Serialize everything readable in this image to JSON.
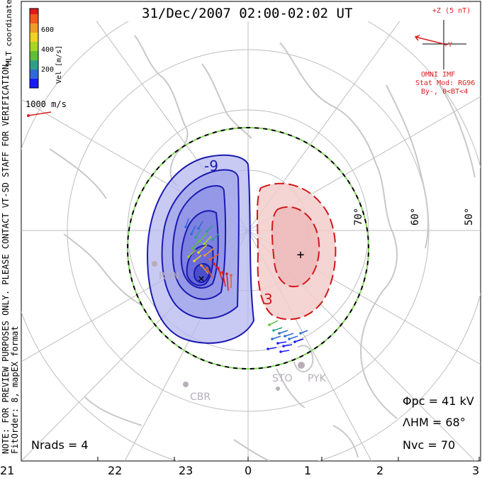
{
  "title": "31/Dec/2007 02:00-02:02 UT",
  "coordinates": "MLT coordinates",
  "colorbar": {
    "label": "Vel [m/s]",
    "ticks": [
      "600",
      "400",
      "200"
    ],
    "colors": [
      "#1a1aff",
      "#2e6bd6",
      "#2ea08a",
      "#5ec03a",
      "#a8d628",
      "#f0d12a",
      "#f09a2a",
      "#f05a1e",
      "#e01a1a"
    ]
  },
  "reference_vector": "1000 m/s",
  "notes": {
    "line1": "NOTE: FOR PREVIEW PURPOSES ONLY. PLEASE CONTACT VT-SD STAFF FOR VERIFICATION.",
    "line2": "FitOrder: 8, mapEX format"
  },
  "imf": {
    "axis_z": "+Z (5 nT)",
    "axis_y": "+Y",
    "source": "OMNI IMF",
    "model": "Stat Mod: RG96",
    "condition": "By-, 0<BT<4"
  },
  "latitude_labels": [
    "70°",
    "60°",
    "50°"
  ],
  "mlt_labels": [
    "21",
    "22",
    "23",
    "0",
    "1",
    "2",
    "3"
  ],
  "contour_labels": {
    "negative": "-9",
    "positive": "3"
  },
  "stations": [
    "RKN",
    "CBR",
    "STO",
    "PYK"
  ],
  "stats": {
    "phi_pc": "Φpc = 41 kV",
    "lambda_hm": "ΛHM = 68°",
    "n_vc": "Nvc = 70",
    "n_rads": "Nrads = 4"
  },
  "colors": {
    "negative_cell": "#2020c0",
    "positive_cell": "#d01818",
    "boundary_green": "#7ed957"
  }
}
